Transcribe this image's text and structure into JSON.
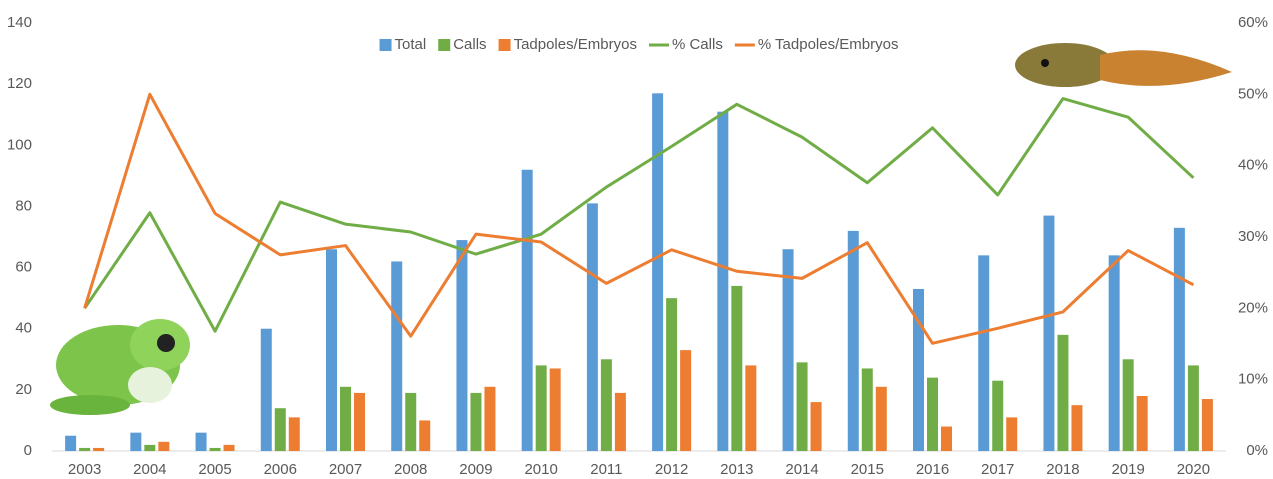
{
  "chart_data": {
    "type": "bar",
    "categories": [
      "2003",
      "2004",
      "2005",
      "2006",
      "2007",
      "2008",
      "2009",
      "2010",
      "2011",
      "2012",
      "2013",
      "2014",
      "2015",
      "2016",
      "2017",
      "2018",
      "2019",
      "2020"
    ],
    "series": [
      {
        "name": "Total",
        "color": "#5b9bd5",
        "type": "bar",
        "values": [
          5,
          6,
          6,
          40,
          66,
          62,
          69,
          92,
          81,
          117,
          111,
          66,
          72,
          53,
          64,
          77,
          64,
          73
        ]
      },
      {
        "name": "Calls",
        "color": "#70ad47",
        "type": "bar",
        "values": [
          1,
          2,
          1,
          14,
          21,
          19,
          19,
          28,
          30,
          50,
          54,
          29,
          27,
          24,
          23,
          38,
          30,
          28
        ]
      },
      {
        "name": "Tadpoles/Embryos",
        "color": "#ed7d31",
        "type": "bar",
        "values": [
          1,
          3,
          2,
          11,
          19,
          10,
          21,
          27,
          19,
          33,
          28,
          16,
          21,
          8,
          11,
          15,
          18,
          17
        ]
      },
      {
        "name": "% Calls",
        "color": "#70ad47",
        "type": "line",
        "axis": "y2",
        "values": [
          20,
          33.4,
          16.8,
          34.9,
          31.8,
          30.7,
          27.6,
          30.4,
          37,
          42.7,
          48.6,
          44,
          37.6,
          45.3,
          35.9,
          49.4,
          46.8,
          38.3
        ]
      },
      {
        "name": "% Tadpoles/Embryos",
        "color": "#ed7d31",
        "type": "line",
        "axis": "y2",
        "values": [
          20,
          50,
          33.3,
          27.5,
          28.8,
          16.1,
          30.4,
          29.3,
          23.5,
          28.2,
          25.2,
          24.2,
          29.2,
          15.1,
          17.2,
          19.5,
          28.1,
          23.3
        ]
      }
    ],
    "ylim": [
      0,
      140
    ],
    "yticks": [
      0,
      20,
      40,
      60,
      80,
      100,
      120,
      140
    ],
    "y2lim": [
      0,
      60
    ],
    "y2ticks": [
      {
        "value": 0,
        "label": "0%"
      },
      {
        "value": 10,
        "label": "10%"
      },
      {
        "value": 20,
        "label": "20%"
      },
      {
        "value": 30,
        "label": "30%"
      },
      {
        "value": 40,
        "label": "40%"
      },
      {
        "value": 50,
        "label": "50%"
      },
      {
        "value": 60,
        "label": "60%"
      }
    ],
    "legend": "top"
  }
}
